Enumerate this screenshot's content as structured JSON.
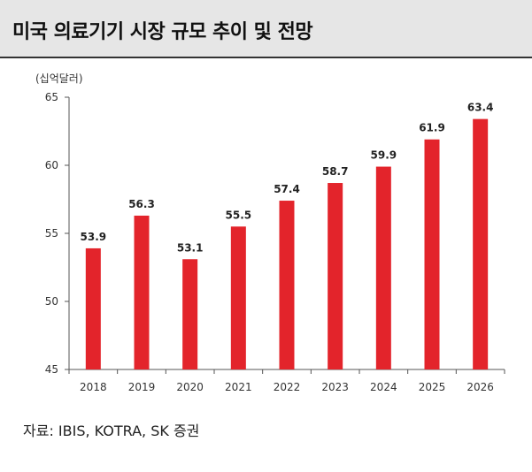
{
  "header": {
    "title": "미국 의료기기 시장 규모 추이 및 전망"
  },
  "source_note": "자료: IBIS, KOTRA, SK 증권",
  "colors": {
    "bar": "#e3242b",
    "title_band": "#e6e6e6"
  },
  "chart_data": {
    "type": "bar",
    "title": "미국 의료기기 시장 규모 추이 및 전망",
    "unit_label": "(십억달러)",
    "categories": [
      "2018",
      "2019",
      "2020",
      "2021",
      "2022",
      "2023",
      "2024",
      "2025",
      "2026"
    ],
    "values": [
      53.9,
      56.3,
      53.1,
      55.5,
      57.4,
      58.7,
      59.9,
      61.9,
      63.4
    ],
    "value_labels": [
      "53.9",
      "56.3",
      "53.1",
      "55.5",
      "57.4",
      "58.7",
      "59.9",
      "61.9",
      "63.4"
    ],
    "ylim": [
      45,
      65
    ],
    "yticks": [
      45,
      50,
      55,
      60,
      65
    ],
    "xlabel": "",
    "ylabel": "",
    "grid": false,
    "legend": "none"
  }
}
